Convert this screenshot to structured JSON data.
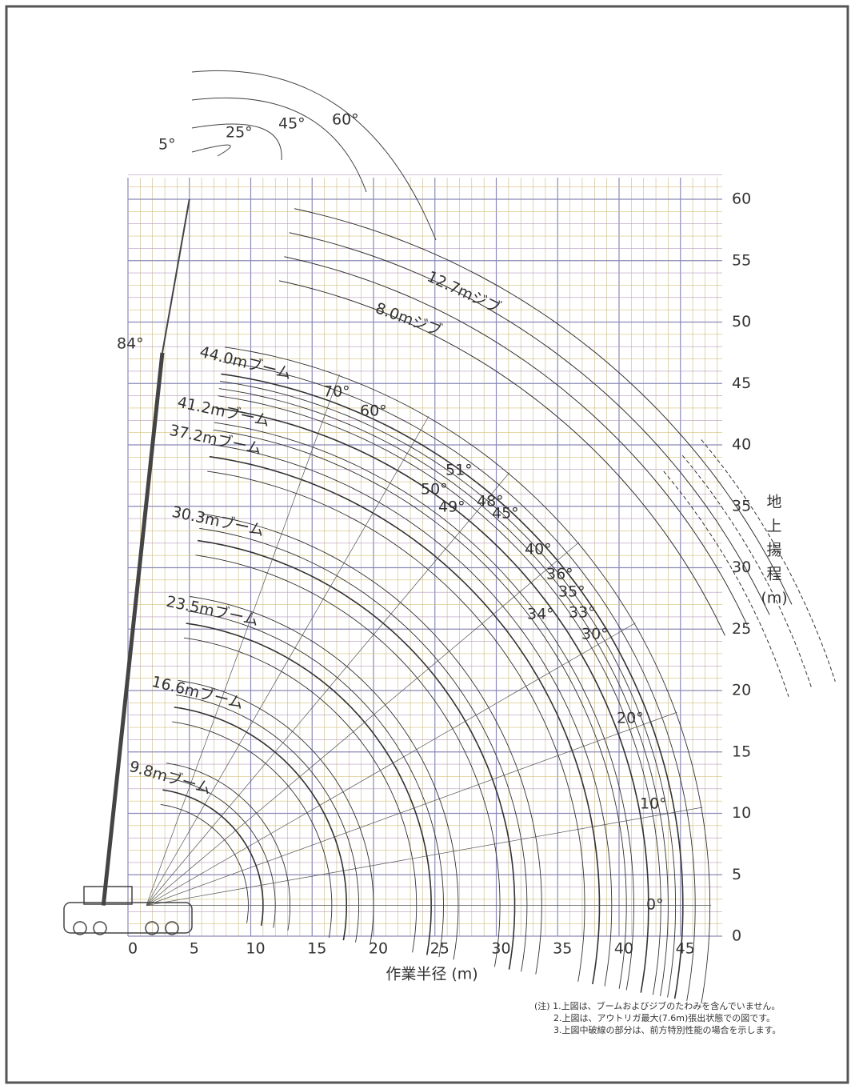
{
  "diagram": {
    "x_axis": {
      "title": "作業半径 (m)",
      "ticks": [
        "0",
        "5",
        "10",
        "15",
        "20",
        "25",
        "30",
        "35",
        "40",
        "45"
      ]
    },
    "y_axis": {
      "title_chars": [
        "地",
        "上",
        "揚",
        "程"
      ],
      "unit": "(m)",
      "ticks": [
        "0",
        "5",
        "10",
        "15",
        "20",
        "25",
        "30",
        "35",
        "40",
        "45",
        "50",
        "55",
        "60"
      ]
    },
    "boom_labels": [
      "12.7mジブ",
      "8.0mジブ",
      "44.0mブーム",
      "41.2mブーム",
      "37.2mブーム",
      "30.3mブーム",
      "23.5mブーム",
      "16.6mブーム",
      "9.8mブーム"
    ],
    "angle_labels": [
      "5°",
      "25°",
      "45°",
      "60°",
      "84°",
      "70°",
      "60°",
      "51°",
      "50°",
      "49°",
      "48°",
      "45°",
      "40°",
      "36°",
      "35°",
      "34°",
      "33°",
      "30°",
      "20°",
      "10°",
      "0°"
    ],
    "notes": [
      "(注) 1.上図は、ブームおよびジブのたわみを含んでいません。",
      "2.上図は、アウトリガ最大(7.6m)張出状態での図です。",
      "3.上図中破線の部分は、前方特別性能の場合を示します。"
    ]
  }
}
